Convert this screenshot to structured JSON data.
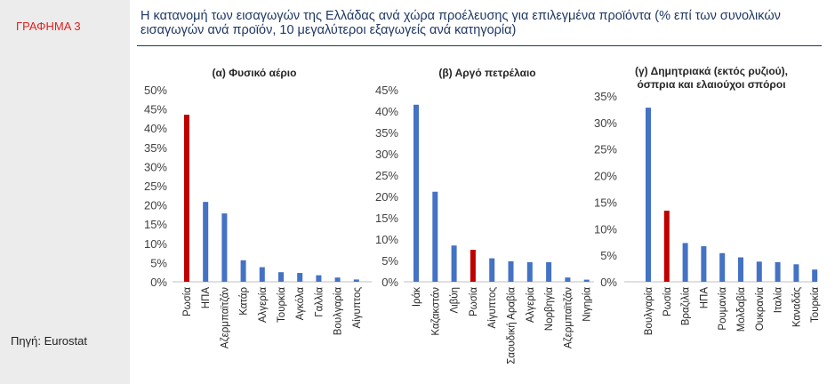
{
  "figure_label": "ΓΡΑΦΗΜΑ 3",
  "title": "Η κατανομή των εισαγωγών της Ελλάδας ανά χώρα προέλευσης για επιλεγμένα προϊόντα (% επί των συνολικών εισαγωγών ανά προϊόν, 10 μεγαλύτεροι εξαγωγείς ανά κατηγορία)",
  "source": "Πηγή: Eurostat",
  "colors": {
    "bar": "#4472c4",
    "highlight": "#c00000",
    "title": "#1f3864"
  },
  "chart_data": [
    {
      "type": "bar",
      "title": "(α) Φυσικό αέριο",
      "categories": [
        "Ρωσία",
        "ΗΠΑ",
        "Αζερμπαϊτζάν",
        "Κατάρ",
        "Αλγερία",
        "Τουρκία",
        "Αγκόλα",
        "Γαλλία",
        "Βουλγαρία",
        "Αίγυπτος"
      ],
      "values": [
        43.5,
        20.8,
        17.8,
        5.6,
        3.8,
        2.5,
        2.3,
        1.7,
        1.1,
        0.6
      ],
      "highlight": "Ρωσία",
      "ylim": [
        0,
        50
      ],
      "yticks": [
        "0%",
        "5%",
        "10%",
        "15%",
        "20%",
        "25%",
        "30%",
        "35%",
        "40%",
        "45%",
        "50%"
      ]
    },
    {
      "type": "bar",
      "title": "(β) Αργό πετρέλαιο",
      "categories": [
        "Ιράκ",
        "Καζακστάν",
        "Λιβύη",
        "Ρωσία",
        "Αίγυπτος",
        "Σαουδική Αραβία",
        "Αλγερία",
        "Νορβηγία",
        "Αζερμπαϊτζάν",
        "Νιγηρία"
      ],
      "values": [
        41.5,
        21.1,
        8.5,
        7.5,
        5.5,
        4.8,
        4.6,
        4.6,
        1.0,
        0.5
      ],
      "highlight": "Ρωσία",
      "ylim": [
        0,
        45
      ],
      "yticks": [
        "0%",
        "5%",
        "10%",
        "15%",
        "20%",
        "25%",
        "30%",
        "35%",
        "40%",
        "45%"
      ]
    },
    {
      "type": "bar",
      "title": "(γ) Δημητριακά (εκτός ρυζιού), όσπρια και ελαιούχοι σπόροι",
      "categories": [
        "Βουλγαρία",
        "Ρωσία",
        "Βραζιλία",
        "ΗΠΑ",
        "Ρουμανία",
        "Μολδαβία",
        "Ουκρανία",
        "Ιταλία",
        "Καναδάς",
        "Τουρκία"
      ],
      "values": [
        32.8,
        13.4,
        7.3,
        6.7,
        5.4,
        4.6,
        3.8,
        3.7,
        3.3,
        2.3
      ],
      "highlight": "Ρωσία",
      "ylim": [
        0,
        35
      ],
      "yticks": [
        "0%",
        "5%",
        "10%",
        "15%",
        "20%",
        "25%",
        "30%",
        "35%"
      ]
    }
  ]
}
